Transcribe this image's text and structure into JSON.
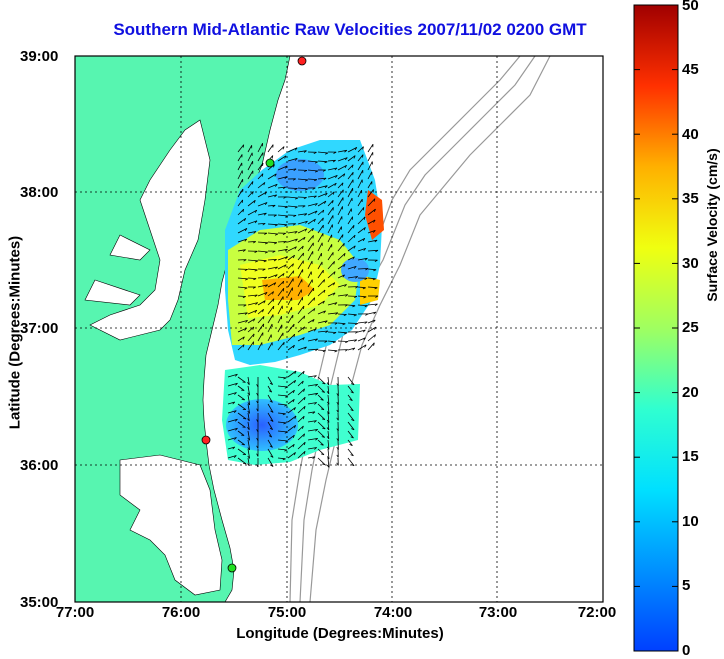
{
  "title": "Southern Mid-Atlantic Raw Velocities 2007/11/02 0200 GMT",
  "xlabel": "Longitude (Degrees:Minutes)",
  "ylabel": "Latitude (Degrees:Minutes)",
  "colorbar_label": "Surface Velocity (cm/s)",
  "y_ticks": [
    "39:00",
    "38:00",
    "37:00",
    "36:00",
    "35:00"
  ],
  "x_ticks": [
    "77:00",
    "76:00",
    "75:00",
    "74:00",
    "73:00",
    "72:00"
  ],
  "colorbar_ticks": [
    "50",
    "45",
    "40",
    "35",
    "30",
    "25",
    "20",
    "15",
    "10",
    "5",
    "0"
  ],
  "colors": {
    "land": "#57f5b0",
    "title": "#1010e0",
    "station_red": "#ff2020",
    "station_green": "#20e020"
  },
  "chart_data": {
    "type": "vector-field-map",
    "title": "Southern Mid-Atlantic Raw Velocities 2007/11/02 0200 GMT",
    "xlabel": "Longitude (Degrees:Minutes)",
    "ylabel": "Latitude (Degrees:Minutes)",
    "xlim": [
      -77,
      -72
    ],
    "ylim": [
      35,
      39
    ],
    "grid": true,
    "colorbar": {
      "label": "Surface Velocity (cm/s)",
      "range": [
        0,
        50
      ],
      "colormap": "jet"
    },
    "stations": [
      {
        "color": "red",
        "lon": -74.85,
        "lat": 38.97
      },
      {
        "color": "green",
        "lon": -75.15,
        "lat": 38.22
      },
      {
        "color": "red",
        "lon": -75.72,
        "lat": 36.19
      },
      {
        "color": "green",
        "lon": -75.52,
        "lat": 35.25
      }
    ]
  }
}
